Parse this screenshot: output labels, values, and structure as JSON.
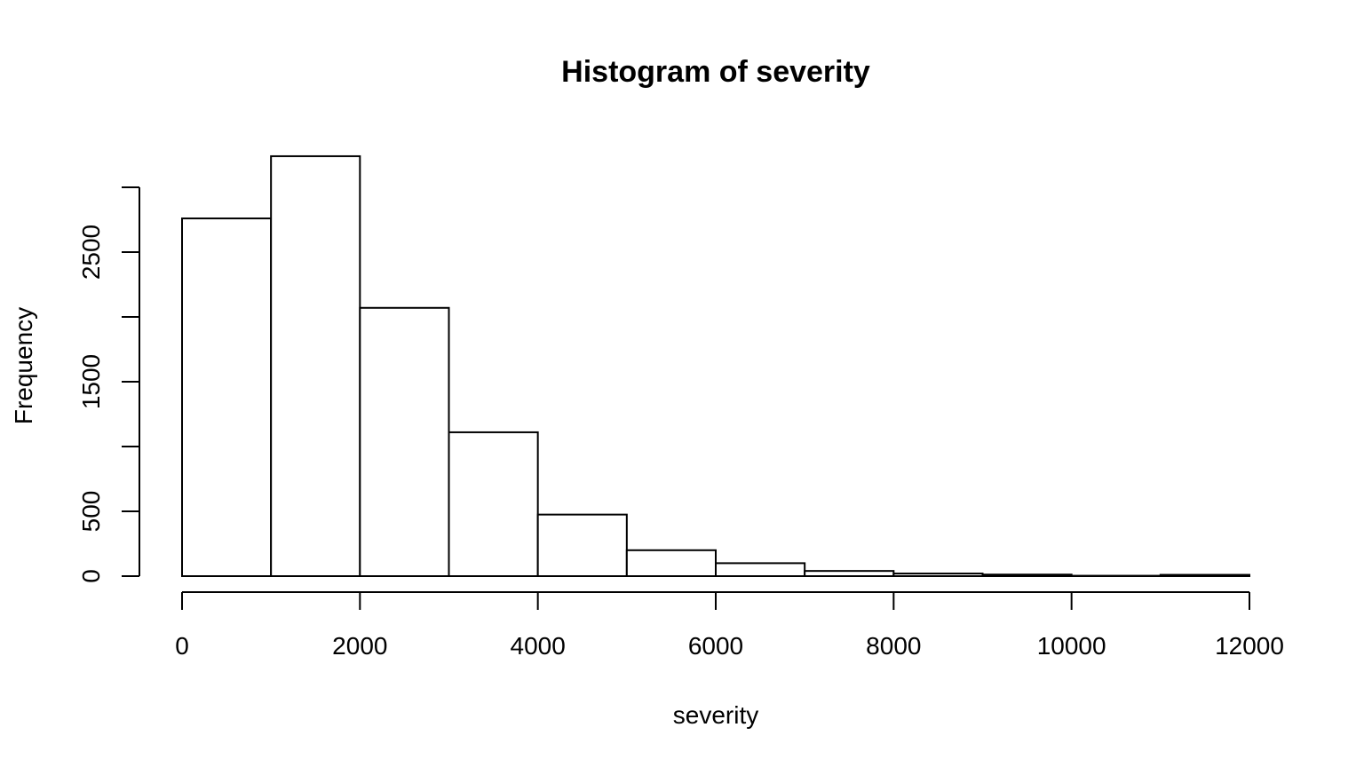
{
  "chart_data": {
    "type": "bar",
    "title": "Histogram of severity",
    "xlabel": "severity",
    "ylabel": "Frequency",
    "bin_edges": [
      0,
      1000,
      2000,
      3000,
      4000,
      5000,
      6000,
      7000,
      8000,
      9000,
      10000,
      11000,
      12000
    ],
    "values": [
      2760,
      3240,
      2070,
      1110,
      475,
      200,
      100,
      40,
      20,
      12,
      3,
      10
    ],
    "xlim": [
      0,
      12000
    ],
    "ylim": [
      0,
      3000
    ],
    "x_ticks": [
      0,
      2000,
      4000,
      6000,
      8000,
      10000,
      12000
    ],
    "x_tick_labels": [
      "0",
      "2000",
      "4000",
      "6000",
      "8000",
      "10000",
      "12000"
    ],
    "y_ticks": [
      0,
      500,
      1000,
      1500,
      2000,
      2500,
      3000
    ],
    "y_tick_labels": [
      "0",
      "500",
      "",
      "1500",
      "",
      "2500",
      ""
    ],
    "grid": false,
    "bar_fill": "#ffffff",
    "bar_stroke": "#000000"
  }
}
